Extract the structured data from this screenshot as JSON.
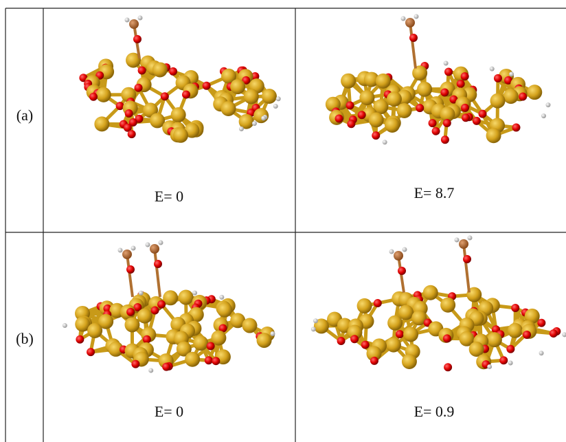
{
  "table": {
    "rows": [
      {
        "label": "(a)",
        "cells": [
          {
            "energy": "E= 0"
          },
          {
            "energy": "E= 8.7"
          }
        ]
      },
      {
        "label": "(b)",
        "cells": [
          {
            "energy": "E= 0"
          },
          {
            "energy": "E= 0.9"
          }
        ]
      }
    ]
  }
}
